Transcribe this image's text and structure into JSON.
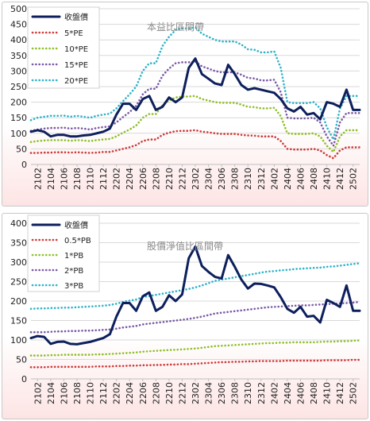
{
  "chart_data": [
    {
      "type": "line",
      "title": "本益比區間帶",
      "x": [
        "2101",
        "2102",
        "2103",
        "2104",
        "2105",
        "2106",
        "2107",
        "2108",
        "2109",
        "2110",
        "2111",
        "2112",
        "2201",
        "2202",
        "2203",
        "2204",
        "2205",
        "2206",
        "2207",
        "2208",
        "2209",
        "2210",
        "2211",
        "2212",
        "2301",
        "2302",
        "2303",
        "2304",
        "2305",
        "2306",
        "2307",
        "2308",
        "2309",
        "2310",
        "2311",
        "2312",
        "2401",
        "2402",
        "2403",
        "2404",
        "2405",
        "2406",
        "2407",
        "2408",
        "2409",
        "2410",
        "2411",
        "2412",
        "2501",
        "2502",
        "2503"
      ],
      "xticks": [
        "2102",
        "2104",
        "2106",
        "2108",
        "2110",
        "2112",
        "2202",
        "2204",
        "2206",
        "2208",
        "2210",
        "2212",
        "2302",
        "2304",
        "2306",
        "2308",
        "2310",
        "2312",
        "2402",
        "2404",
        "2406",
        "2408",
        "2410",
        "2412",
        "2502"
      ],
      "ylim": [
        0,
        500
      ],
      "yticks": [
        0,
        50,
        100,
        150,
        200,
        250,
        300,
        350,
        400,
        450,
        500
      ],
      "legend_position": "top-left",
      "series": [
        {
          "name": "收盤價",
          "color": "#0d1f5c",
          "style": "solid",
          "values": [
            105,
            110,
            105,
            90,
            95,
            95,
            90,
            90,
            93,
            95,
            100,
            105,
            115,
            160,
            195,
            195,
            175,
            210,
            220,
            175,
            185,
            215,
            200,
            215,
            310,
            340,
            290,
            275,
            260,
            255,
            320,
            290,
            255,
            240,
            245,
            240,
            235,
            230,
            210,
            180,
            170,
            185,
            160,
            165,
            145,
            200,
            195,
            185,
            240,
            175,
            175
          ]
        },
        {
          "name": "5*PE",
          "color": "#cf3a3a",
          "style": "dotted",
          "values": [
            37,
            37,
            38,
            38,
            39,
            39,
            38,
            39,
            38,
            37,
            38,
            40,
            40,
            45,
            50,
            55,
            62,
            75,
            80,
            80,
            95,
            102,
            107,
            108,
            108,
            110,
            105,
            103,
            100,
            98,
            98,
            98,
            95,
            93,
            92,
            90,
            90,
            90,
            75,
            50,
            48,
            48,
            48,
            50,
            45,
            30,
            20,
            45,
            55,
            55,
            55
          ]
        },
        {
          "name": "10*PE",
          "color": "#8fbf2a",
          "style": "dotted",
          "values": [
            72,
            75,
            77,
            78,
            78,
            78,
            76,
            78,
            77,
            75,
            78,
            80,
            82,
            90,
            102,
            112,
            125,
            150,
            162,
            162,
            190,
            205,
            215,
            218,
            218,
            220,
            210,
            205,
            200,
            198,
            198,
            198,
            192,
            185,
            184,
            180,
            180,
            182,
            155,
            100,
            98,
            98,
            98,
            100,
            90,
            60,
            40,
            90,
            110,
            110,
            110
          ]
        },
        {
          "name": "15*PE",
          "color": "#7b5aa6",
          "style": "dotted",
          "values": [
            108,
            112,
            115,
            117,
            117,
            118,
            115,
            117,
            115,
            112,
            117,
            120,
            122,
            135,
            152,
            168,
            188,
            225,
            243,
            243,
            285,
            308,
            325,
            328,
            328,
            330,
            315,
            308,
            300,
            296,
            296,
            296,
            288,
            278,
            276,
            270,
            270,
            272,
            232,
            150,
            148,
            148,
            148,
            150,
            135,
            90,
            60,
            135,
            165,
            165,
            165
          ]
        },
        {
          "name": "20*PE",
          "color": "#2fb3c8",
          "style": "dotted",
          "values": [
            142,
            150,
            153,
            156,
            156,
            157,
            153,
            156,
            153,
            150,
            156,
            160,
            163,
            180,
            203,
            225,
            250,
            300,
            325,
            325,
            380,
            410,
            432,
            437,
            437,
            440,
            420,
            410,
            400,
            395,
            395,
            395,
            385,
            370,
            368,
            360,
            360,
            363,
            310,
            200,
            197,
            197,
            197,
            200,
            180,
            120,
            80,
            180,
            220,
            220,
            220
          ]
        }
      ]
    },
    {
      "type": "line",
      "title": "股價淨值比區間帶",
      "x": [
        "2101",
        "2102",
        "2103",
        "2104",
        "2105",
        "2106",
        "2107",
        "2108",
        "2109",
        "2110",
        "2111",
        "2112",
        "2201",
        "2202",
        "2203",
        "2204",
        "2205",
        "2206",
        "2207",
        "2208",
        "2209",
        "2210",
        "2211",
        "2212",
        "2301",
        "2302",
        "2303",
        "2304",
        "2305",
        "2306",
        "2307",
        "2308",
        "2309",
        "2310",
        "2311",
        "2312",
        "2401",
        "2402",
        "2403",
        "2404",
        "2405",
        "2406",
        "2407",
        "2408",
        "2409",
        "2410",
        "2411",
        "2412",
        "2501",
        "2502",
        "2503"
      ],
      "xticks": [
        "2102",
        "2104",
        "2106",
        "2108",
        "2110",
        "2112",
        "2202",
        "2204",
        "2206",
        "2208",
        "2210",
        "2212",
        "2302",
        "2304",
        "2306",
        "2308",
        "2310",
        "2312",
        "2402",
        "2404",
        "2406",
        "2408",
        "2410",
        "2412",
        "2502"
      ],
      "ylim": [
        0,
        400
      ],
      "yticks": [
        0,
        50,
        100,
        150,
        200,
        250,
        300,
        350,
        400
      ],
      "legend_position": "top-left",
      "series": [
        {
          "name": "收盤價",
          "color": "#0d1f5c",
          "style": "solid",
          "values": [
            105,
            110,
            108,
            90,
            95,
            96,
            90,
            89,
            92,
            95,
            100,
            105,
            115,
            160,
            195,
            195,
            175,
            212,
            222,
            175,
            185,
            215,
            200,
            217,
            310,
            340,
            290,
            275,
            262,
            258,
            318,
            288,
            255,
            232,
            245,
            244,
            240,
            235,
            210,
            180,
            170,
            185,
            160,
            162,
            145,
            203,
            195,
            185,
            240,
            175,
            175
          ]
        },
        {
          "name": "0.5*PB",
          "color": "#cf3a3a",
          "style": "dotted",
          "values": [
            30,
            30,
            30,
            31,
            31,
            31,
            31,
            31,
            31,
            31,
            32,
            32,
            32,
            33,
            33,
            34,
            34,
            35,
            35,
            36,
            36,
            37,
            37,
            38,
            38,
            39,
            40,
            41,
            42,
            43,
            43,
            44,
            44,
            45,
            45,
            46,
            46,
            46,
            46,
            47,
            47,
            47,
            47,
            47,
            47,
            48,
            48,
            48,
            48,
            49,
            49
          ]
        },
        {
          "name": "1*PB",
          "color": "#8fbf2a",
          "style": "dotted",
          "values": [
            60,
            60,
            60,
            61,
            61,
            62,
            62,
            62,
            62,
            62,
            63,
            63,
            64,
            65,
            66,
            67,
            68,
            70,
            71,
            72,
            73,
            74,
            75,
            76,
            77,
            78,
            80,
            82,
            84,
            85,
            86,
            87,
            88,
            89,
            90,
            91,
            92,
            92,
            93,
            93,
            94,
            94,
            94,
            94,
            95,
            96,
            96,
            97,
            97,
            98,
            99
          ]
        },
        {
          "name": "2*PB",
          "color": "#7b5aa6",
          "style": "dotted",
          "values": [
            120,
            120,
            120,
            121,
            122,
            122,
            123,
            123,
            124,
            124,
            125,
            126,
            127,
            129,
            132,
            134,
            136,
            140,
            142,
            144,
            146,
            148,
            150,
            152,
            154,
            157,
            160,
            164,
            168,
            170,
            172,
            174,
            176,
            178,
            180,
            182,
            184,
            185,
            186,
            187,
            188,
            189,
            189,
            190,
            191,
            192,
            193,
            194,
            195,
            196,
            198
          ]
        },
        {
          "name": "3*PB",
          "color": "#2fb3c8",
          "style": "dotted",
          "values": [
            180,
            181,
            181,
            182,
            182,
            183,
            183,
            184,
            185,
            186,
            187,
            188,
            190,
            193,
            198,
            201,
            204,
            210,
            213,
            216,
            219,
            222,
            225,
            228,
            231,
            235,
            240,
            246,
            252,
            255,
            258,
            261,
            264,
            267,
            270,
            273,
            276,
            277,
            279,
            280,
            282,
            283,
            284,
            285,
            286,
            288,
            289,
            291,
            293,
            295,
            297
          ]
        }
      ]
    }
  ]
}
